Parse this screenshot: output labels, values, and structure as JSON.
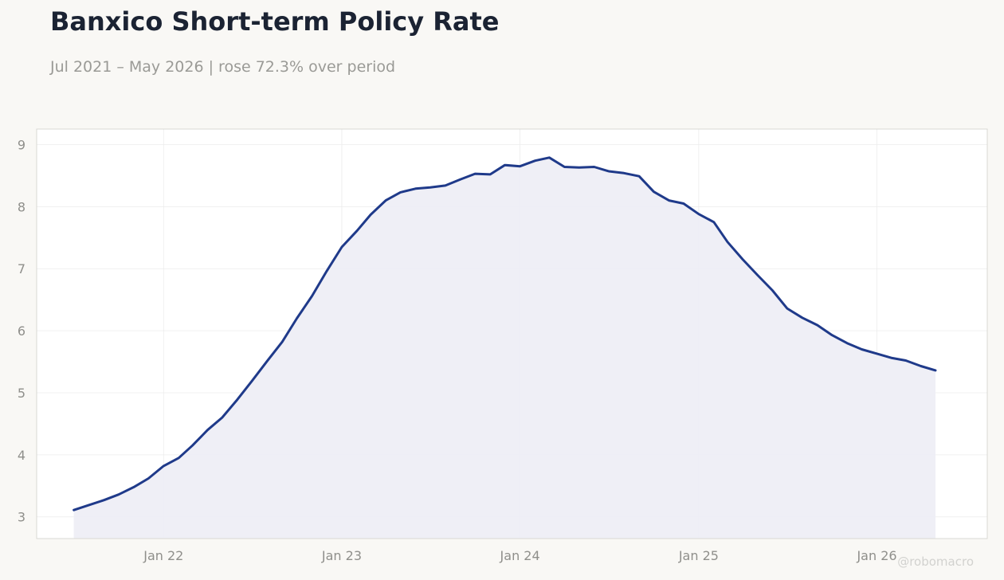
{
  "header": {
    "title": "Banxico Short-term Policy Rate",
    "subtitle": "Jul 2021 – May 2026 | rose 72.3% over period"
  },
  "watermark": "@robomacro",
  "colors": {
    "line": "#1f3a8a",
    "fill": "#eeeef5",
    "grid": "#ececec",
    "frame": "#d9d9d4"
  },
  "chart_data": {
    "type": "area",
    "title": "Banxico Short-term Policy Rate",
    "xlabel": "",
    "ylabel": "",
    "ylim": [
      2.65,
      9.25
    ],
    "xlim": [
      "2021-04-16",
      "2026-08-15"
    ],
    "y_ticks": [
      3,
      4,
      5,
      6,
      7,
      8,
      9
    ],
    "x_ticks": [
      {
        "date": "2022-01-01",
        "label": "Jan 22"
      },
      {
        "date": "2023-01-01",
        "label": "Jan 23"
      },
      {
        "date": "2024-01-01",
        "label": "Jan 24"
      },
      {
        "date": "2025-01-01",
        "label": "Jan 25"
      },
      {
        "date": "2026-01-01",
        "label": "Jan 26"
      }
    ],
    "grid": true,
    "legend": "none",
    "series": [
      {
        "x": [
          "2021-07",
          "2021-08",
          "2021-09",
          "2021-10",
          "2021-11",
          "2021-12",
          "2022-01",
          "2022-02",
          "2022-03",
          "2022-04",
          "2022-05",
          "2022-06",
          "2022-07",
          "2022-08",
          "2022-09",
          "2022-10",
          "2022-11",
          "2022-12",
          "2023-01",
          "2023-02",
          "2023-03",
          "2023-04",
          "2023-05",
          "2023-06",
          "2023-07",
          "2023-08",
          "2023-09",
          "2023-10",
          "2023-11",
          "2023-12",
          "2024-01",
          "2024-02",
          "2024-03",
          "2024-04",
          "2024-05",
          "2024-06",
          "2024-07",
          "2024-08",
          "2024-09",
          "2024-10",
          "2024-11",
          "2024-12",
          "2025-01",
          "2025-02",
          "2025-03",
          "2025-04",
          "2025-05",
          "2025-06",
          "2025-07",
          "2025-08",
          "2025-09",
          "2025-10",
          "2025-11",
          "2025-12",
          "2026-01",
          "2026-02",
          "2026-03",
          "2026-04",
          "2026-05"
        ],
        "y": [
          3.11,
          3.19,
          3.27,
          3.36,
          3.48,
          3.62,
          3.82,
          3.95,
          4.15,
          4.4,
          4.6,
          4.89,
          5.19,
          5.51,
          5.82,
          6.2,
          6.56,
          6.96,
          7.35,
          7.61,
          7.87,
          8.1,
          8.23,
          8.29,
          8.31,
          8.34,
          8.44,
          8.53,
          8.52,
          8.67,
          8.65,
          8.74,
          8.79,
          8.64,
          8.63,
          8.64,
          8.57,
          8.54,
          8.49,
          8.24,
          8.1,
          8.05,
          7.88,
          7.75,
          7.43,
          7.15,
          6.9,
          6.65,
          6.36,
          6.21,
          6.09,
          5.93,
          5.8,
          5.7,
          5.63,
          5.56,
          5.52,
          5.43,
          5.36
        ]
      }
    ]
  }
}
